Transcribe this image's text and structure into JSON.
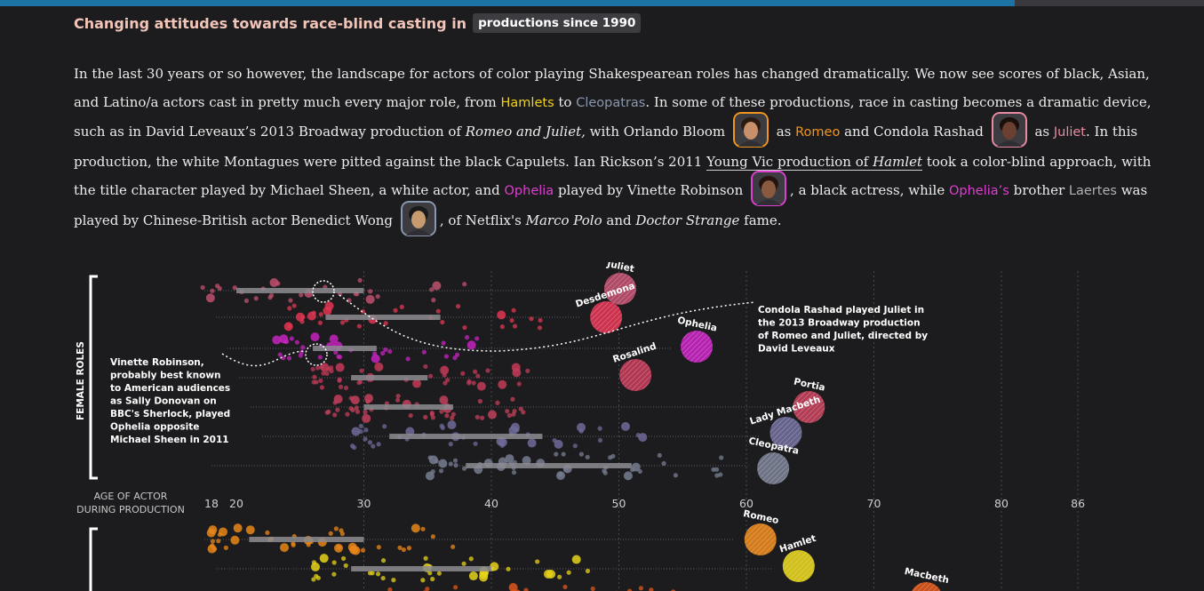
{
  "heading": {
    "text": "Changing attitudes towards race-blind casting in",
    "pill": "productions since 1990"
  },
  "paragraph": {
    "p1": "In the last 30 years or so however, the landscape for actors of color playing Shakespearean roles has changed dramatically. We now see scores of black, Asian, and Latino/a actors cast in pretty much every major role, from ",
    "hamlets": "Hamlets",
    "to": " to ",
    "cleopatras": "Cleopatras",
    "p2": ". In some of these productions, race in casting becomes a dramatic device, such as in David Leveaux’s 2013 Broadway production of ",
    "romeo_juliet": "Romeo and Juliet,",
    "p3": " with Orlando Bloom",
    "as1": " as ",
    "romeo": "Romeo",
    "p4": " and Condola Rashad",
    "as2": " as ",
    "juliet": "Juliet",
    "p5": ". In this production, the white Montagues were pitted against the black Capulets. Ian Rickson’s 2011 ",
    "young_vic": "Young Vic production of ",
    "hamlet_it": "Hamlet",
    "p6": " took a color-blind approach, with the title character played by Michael Sheen, a white actor, and ",
    "ophelia": "Ophelia",
    "p7": " played by Vinette Robinson",
    "p8": ", a black actress, while ",
    "ophelias": "Ophelia’s",
    "p9": " brother ",
    "laertes": "Laertes",
    "p10": " was played by Chinese-British actor Benedict Wong",
    "p11": ", of Netflix's ",
    "marco": "Marco Polo",
    "and": " and ",
    "strange": "Doctor Strange",
    "p12": " fame."
  },
  "avatars": [
    {
      "name": "Orlando Bloom",
      "border": "#f3951f",
      "skin": "#c8906a",
      "hair": "#2b1a10"
    },
    {
      "name": "Condola Rashad",
      "border": "#e88aa0",
      "skin": "#6b4030",
      "hair": "#1a0f0a"
    },
    {
      "name": "Vinette Robinson",
      "border": "#dd3fd0",
      "skin": "#8a5a40",
      "hair": "#241410"
    },
    {
      "name": "Benedict Wong",
      "border": "#8a98ad",
      "skin": "#c89a70",
      "hair": "#1a1a1a"
    }
  ],
  "colors": {
    "accent_bar": "#1d72a6",
    "heading": "#f3c4b8",
    "hamlet": "#f2d21b",
    "cleopatra": "#8a98ad",
    "romeo": "#f3951f",
    "juliet": "#e88aa0",
    "ophelia": "#dd3fd0"
  },
  "progress": 0.843,
  "chart_data": {
    "type": "scatter",
    "xlabel": "AGE OF ACTOR DURING PRODUCTION",
    "x_ticks": [
      18,
      20,
      30,
      40,
      50,
      60,
      70,
      80,
      86
    ],
    "x_range": [
      18,
      86
    ],
    "female_label": "FEMALE ROLES",
    "female_roles": [
      {
        "role": "Juliet",
        "color": "#c0506e",
        "range": [
          20,
          30
        ],
        "avg": 50.1
      },
      {
        "role": "Desdemona",
        "color": "#e03552",
        "range": [
          27,
          36
        ],
        "avg": 49
      },
      {
        "role": "Ophelia",
        "color": "#c623bf",
        "range": [
          26,
          31
        ],
        "avg": 56.1
      },
      {
        "role": "Rosalind",
        "color": "#c23a58",
        "range": [
          29,
          35
        ],
        "avg": 51.3
      },
      {
        "role": "Portia",
        "color": "#c2405a",
        "range": [
          30,
          37
        ],
        "avg": 64.9
      },
      {
        "role": "Lady Macbeth",
        "color": "#6e6a98",
        "range": [
          32,
          44
        ],
        "avg": 63.1
      },
      {
        "role": "Cleopatra",
        "color": "#777d90",
        "range": [
          38,
          51
        ],
        "avg": 62.1
      }
    ],
    "male_roles": [
      {
        "role": "Romeo",
        "color": "#e88619",
        "range": [
          21,
          30
        ],
        "avg": 61.1
      },
      {
        "role": "Hamlet",
        "color": "#e6d21a",
        "range": [
          29,
          40
        ],
        "avg": 64.1
      },
      {
        "role": "Macbeth",
        "color": "#e0561a",
        "range": [
          35,
          50
        ],
        "avg": 74.1
      }
    ],
    "annotations": {
      "left": [
        "Vinette Robinson,",
        "probably best known",
        "to American audiences",
        "as Sally Donovan on",
        "BBC's Sherlock, played",
        "Ophelia opposite",
        "Michael Sheen in 2011"
      ],
      "right": [
        "Condola Rashad played Juliet in",
        "the 2013 Broadway production",
        "of Romeo and Juliet, directed by",
        "David Leveaux"
      ]
    },
    "grid": true
  }
}
